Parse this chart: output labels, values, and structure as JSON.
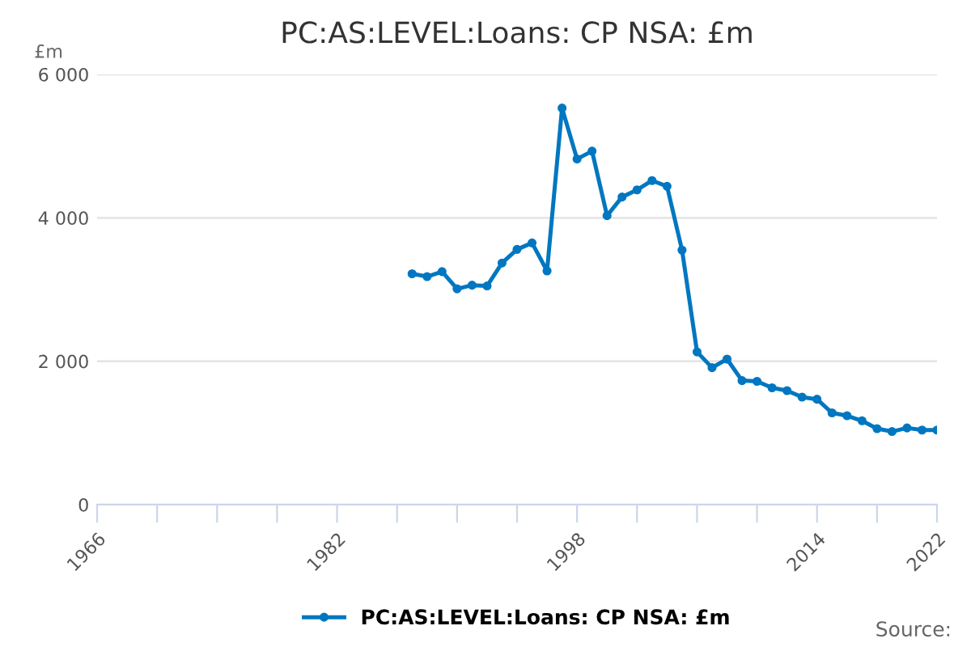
{
  "chart_data": {
    "type": "line",
    "title": "PC:AS:LEVEL:Loans: CP NSA: £m",
    "ylabel": "£m",
    "x": [
      1987,
      1988,
      1989,
      1990,
      1991,
      1992,
      1993,
      1994,
      1995,
      1996,
      1997,
      1998,
      1999,
      2000,
      2001,
      2002,
      2003,
      2004,
      2005,
      2006,
      2007,
      2008,
      2009,
      2010,
      2011,
      2012,
      2013,
      2014,
      2015,
      2016,
      2017,
      2018,
      2019,
      2020,
      2021,
      2022
    ],
    "series": [
      {
        "name": "PC:AS:LEVEL:Loans: CP NSA: £m",
        "color": "#0077c0",
        "values": [
          3220,
          3180,
          3250,
          3010,
          3060,
          3050,
          3370,
          3560,
          3650,
          3260,
          5530,
          4820,
          4930,
          4030,
          4290,
          4390,
          4520,
          4440,
          3550,
          2130,
          1910,
          2030,
          1730,
          1720,
          1630,
          1590,
          1500,
          1470,
          1280,
          1240,
          1170,
          1060,
          1020,
          1070,
          1040,
          1040
        ]
      }
    ],
    "xlim": [
      1966,
      2022
    ],
    "xticks": [
      1966,
      {
        "value": 1970,
        "label": null
      },
      {
        "value": 1974,
        "label": null
      },
      {
        "value": 1978,
        "label": null
      },
      1982,
      {
        "value": 1986,
        "label": null
      },
      {
        "value": 1990,
        "label": null
      },
      {
        "value": 1994,
        "label": null
      },
      1998,
      {
        "value": 2002,
        "label": null
      },
      {
        "value": 2006,
        "label": null
      },
      {
        "value": 2010,
        "label": null
      },
      2014,
      {
        "value": 2018,
        "label": null
      },
      2022
    ],
    "ylim": [
      0,
      6000
    ],
    "yticks": [
      {
        "value": 0,
        "label": "0"
      },
      {
        "value": 2000,
        "label": "2 000"
      },
      {
        "value": 4000,
        "label": "4 000"
      },
      {
        "value": 6000,
        "label": "6 000"
      }
    ],
    "grid": "y",
    "legend": "bottom",
    "marker": "circle",
    "line_style": "solid",
    "annotations": [
      "Source:"
    ]
  }
}
